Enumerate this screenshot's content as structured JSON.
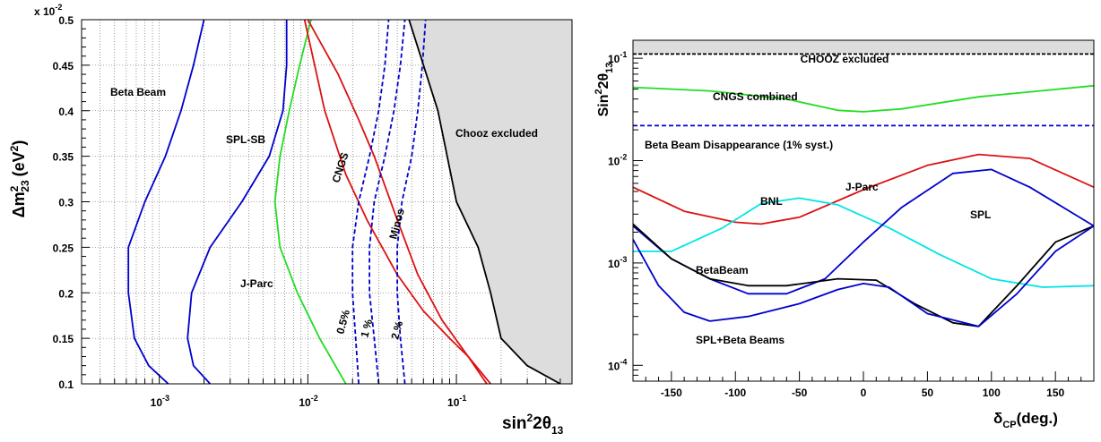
{
  "left_chart": {
    "y_multiplier_label": "x 10",
    "y_multiplier_exp": "-2",
    "ylabel_main": "Δm",
    "ylabel_sup": "2",
    "ylabel_sub": "23",
    "ylabel_unit": "(eV",
    "ylabel_unit_sup": "2",
    "ylabel_close": ")",
    "xlabel_main": "sin",
    "xlabel_sup": "2",
    "xlabel_mid": "2θ",
    "xlabel_sub": "13",
    "y_ticks": [
      "0.1",
      "0.15",
      "0.2",
      "0.25",
      "0.3",
      "0.35",
      "0.4",
      "0.45",
      "0.5"
    ],
    "x_ticks": [
      {
        "base": "10",
        "exp": "-3"
      },
      {
        "base": "10",
        "exp": "-2"
      },
      {
        "base": "10",
        "exp": "-1"
      }
    ],
    "labels": {
      "beta_beam": "Beta Beam",
      "spl_sb": "SPL-SB",
      "j_parc": "J-Parc",
      "cngs": "CNGS",
      "minos": "Minos",
      "chooz": "Chooz excluded",
      "p05": "0.5%",
      "p1": "1 %",
      "p2": "2 %"
    }
  },
  "right_chart": {
    "ylabel_main": "Sin",
    "ylabel_sup": "2",
    "ylabel_mid": "2θ",
    "ylabel_sub": "13",
    "xlabel_main": "δ",
    "xlabel_sub": "CP",
    "xlabel_unit": "(deg.)",
    "x_ticks": [
      "-150",
      "-100",
      "-50",
      "0",
      "50",
      "100",
      "150"
    ],
    "y_ticks": [
      {
        "base": "10",
        "exp": "-1"
      },
      {
        "base": "10",
        "exp": "-2"
      },
      {
        "base": "10",
        "exp": "-3"
      },
      {
        "base": "10",
        "exp": "-4"
      }
    ],
    "labels": {
      "chooz": "CHOOZ excluded",
      "cngs": "CNGS combined",
      "beta_dis": "Beta Beam Disappearance (1% syst.)",
      "jparc": "J-Parc",
      "bnl": "BNL",
      "spl": "SPL",
      "betabeam": "BetaBeam",
      "spl_beta": "SPL+Beta Beams"
    }
  },
  "chart_data": [
    {
      "type": "line",
      "xlabel": "sin²2θ13",
      "ylabel": "Δm²23 (eV²)",
      "x_scale": "log",
      "xlim": [
        0.0003,
        0.6
      ],
      "ylim": [
        0.1,
        0.5
      ],
      "y_multiplier": "x 10^-2",
      "colors": {
        "blue": "#0000cc",
        "green": "#22dd22",
        "red": "#dd1111",
        "black": "#000000",
        "shade": "#dddddd"
      },
      "series": [
        {
          "name": "Beta Beam",
          "style": "blue",
          "points": [
            [
              0.00115,
              0.1
            ],
            [
              0.00085,
              0.12
            ],
            [
              0.00068,
              0.15
            ],
            [
              0.00062,
              0.2
            ],
            [
              0.00062,
              0.25
            ],
            [
              0.0008,
              0.3
            ],
            [
              0.0011,
              0.35
            ],
            [
              0.0014,
              0.4
            ],
            [
              0.0017,
              0.45
            ],
            [
              0.002,
              0.5
            ]
          ]
        },
        {
          "name": "SPL-SB",
          "style": "blue",
          "points": [
            [
              0.0022,
              0.1
            ],
            [
              0.0017,
              0.12
            ],
            [
              0.00155,
              0.15
            ],
            [
              0.00165,
              0.2
            ],
            [
              0.0022,
              0.25
            ],
            [
              0.0036,
              0.3
            ],
            [
              0.0055,
              0.35
            ],
            [
              0.0068,
              0.4
            ],
            [
              0.0072,
              0.45
            ],
            [
              0.0072,
              0.5
            ]
          ]
        },
        {
          "name": "J-Parc",
          "style": "green",
          "points": [
            [
              0.018,
              0.1
            ],
            [
              0.012,
              0.15
            ],
            [
              0.0085,
              0.2
            ],
            [
              0.0065,
              0.25
            ],
            [
              0.006,
              0.3
            ],
            [
              0.0065,
              0.35
            ],
            [
              0.0075,
              0.4
            ],
            [
              0.0088,
              0.45
            ],
            [
              0.0105,
              0.5
            ]
          ]
        },
        {
          "name": "CNGS",
          "style": "red",
          "points": [
            [
              0.0095,
              0.5
            ],
            [
              0.013,
              0.4
            ],
            [
              0.018,
              0.33
            ],
            [
              0.025,
              0.28
            ],
            [
              0.04,
              0.22
            ],
            [
              0.06,
              0.18
            ],
            [
              0.09,
              0.15
            ],
            [
              0.12,
              0.13
            ],
            [
              0.16,
              0.1
            ]
          ]
        },
        {
          "name": "Minos",
          "style": "red",
          "points": [
            [
              0.01,
              0.5
            ],
            [
              0.016,
              0.44
            ],
            [
              0.022,
              0.39
            ],
            [
              0.028,
              0.35
            ],
            [
              0.04,
              0.28
            ],
            [
              0.055,
              0.22
            ],
            [
              0.08,
              0.17
            ],
            [
              0.12,
              0.13
            ],
            [
              0.17,
              0.1
            ]
          ]
        },
        {
          "name": "0.5%",
          "style": "blue-dash",
          "points": [
            [
              0.022,
              0.1
            ],
            [
              0.021,
              0.15
            ],
            [
              0.02,
              0.2
            ],
            [
              0.02,
              0.25
            ],
            [
              0.022,
              0.3
            ],
            [
              0.026,
              0.35
            ],
            [
              0.03,
              0.4
            ],
            [
              0.033,
              0.45
            ],
            [
              0.035,
              0.5
            ]
          ]
        },
        {
          "name": "1 %",
          "style": "blue-dash",
          "points": [
            [
              0.03,
              0.1
            ],
            [
              0.028,
              0.15
            ],
            [
              0.026,
              0.2
            ],
            [
              0.026,
              0.25
            ],
            [
              0.028,
              0.3
            ],
            [
              0.033,
              0.35
            ],
            [
              0.038,
              0.4
            ],
            [
              0.042,
              0.45
            ],
            [
              0.045,
              0.5
            ]
          ]
        },
        {
          "name": "2 %",
          "style": "blue-dash",
          "points": [
            [
              0.045,
              0.1
            ],
            [
              0.042,
              0.15
            ],
            [
              0.04,
              0.2
            ],
            [
              0.04,
              0.25
            ],
            [
              0.043,
              0.3
            ],
            [
              0.05,
              0.35
            ],
            [
              0.055,
              0.4
            ],
            [
              0.059,
              0.45
            ],
            [
              0.062,
              0.5
            ]
          ]
        },
        {
          "name": "Chooz excluded",
          "style": "black",
          "points": [
            [
              0.048,
              0.5
            ],
            [
              0.075,
              0.4
            ],
            [
              0.1,
              0.3
            ],
            [
              0.14,
              0.25
            ],
            [
              0.17,
              0.2
            ],
            [
              0.2,
              0.15
            ],
            [
              0.3,
              0.12
            ],
            [
              0.5,
              0.1
            ]
          ]
        }
      ]
    },
    {
      "type": "line",
      "xlabel": "δCP(deg.)",
      "ylabel": "Sin²2θ13",
      "y_scale": "log",
      "xlim": [
        -180,
        180
      ],
      "ylim": [
        7e-05,
        0.15
      ],
      "series": [
        {
          "name": "CHOOZ excluded",
          "style": "black-dash",
          "points": [
            [
              -180,
              0.11
            ],
            [
              180,
              0.11
            ]
          ]
        },
        {
          "name": "CNGS combined",
          "style": "green",
          "points": [
            [
              -180,
              0.052
            ],
            [
              -120,
              0.048
            ],
            [
              -60,
              0.04
            ],
            [
              -20,
              0.031
            ],
            [
              0,
              0.03
            ],
            [
              30,
              0.032
            ],
            [
              90,
              0.042
            ],
            [
              180,
              0.054
            ]
          ]
        },
        {
          "name": "Beta Beam Disappearance (1% syst.)",
          "style": "blue-dash",
          "points": [
            [
              -180,
              0.022
            ],
            [
              180,
              0.022
            ]
          ]
        },
        {
          "name": "J-Parc",
          "style": "red",
          "points": [
            [
              -180,
              0.0055
            ],
            [
              -140,
              0.0032
            ],
            [
              -100,
              0.0025
            ],
            [
              -80,
              0.0024
            ],
            [
              -50,
              0.0028
            ],
            [
              0,
              0.0052
            ],
            [
              50,
              0.009
            ],
            [
              90,
              0.0115
            ],
            [
              130,
              0.0105
            ],
            [
              180,
              0.0055
            ]
          ]
        },
        {
          "name": "BNL",
          "style": "cyan",
          "points": [
            [
              -180,
              0.0013
            ],
            [
              -150,
              0.0013
            ],
            [
              -110,
              0.0022
            ],
            [
              -80,
              0.0038
            ],
            [
              -50,
              0.0043
            ],
            [
              -20,
              0.0037
            ],
            [
              20,
              0.0022
            ],
            [
              60,
              0.0012
            ],
            [
              100,
              0.0007
            ],
            [
              140,
              0.00058
            ],
            [
              180,
              0.0006
            ]
          ]
        },
        {
          "name": "SPL",
          "style": "blue",
          "points": [
            [
              -180,
              0.0023
            ],
            [
              -150,
              0.0011
            ],
            [
              -120,
              0.0007
            ],
            [
              -90,
              0.0005
            ],
            [
              -60,
              0.0005
            ],
            [
              -30,
              0.0007
            ],
            [
              0,
              0.0016
            ],
            [
              30,
              0.0035
            ],
            [
              70,
              0.0075
            ],
            [
              100,
              0.0082
            ],
            [
              130,
              0.0055
            ],
            [
              180,
              0.0023
            ]
          ]
        },
        {
          "name": "BetaBeam",
          "style": "black",
          "points": [
            [
              -180,
              0.0024
            ],
            [
              -150,
              0.0011
            ],
            [
              -120,
              0.0007
            ],
            [
              -90,
              0.0006
            ],
            [
              -60,
              0.0006
            ],
            [
              -20,
              0.0007
            ],
            [
              10,
              0.00068
            ],
            [
              40,
              0.0004
            ],
            [
              70,
              0.00026
            ],
            [
              90,
              0.00024
            ],
            [
              120,
              0.0006
            ],
            [
              150,
              0.0016
            ],
            [
              180,
              0.0023
            ]
          ]
        },
        {
          "name": "SPL+Beta Beams",
          "style": "blue",
          "points": [
            [
              -180,
              0.0017
            ],
            [
              -160,
              0.0006
            ],
            [
              -140,
              0.00033
            ],
            [
              -120,
              0.00027
            ],
            [
              -90,
              0.0003
            ],
            [
              -50,
              0.0004
            ],
            [
              -20,
              0.00055
            ],
            [
              0,
              0.00063
            ],
            [
              20,
              0.00058
            ],
            [
              50,
              0.00032
            ],
            [
              90,
              0.00024
            ],
            [
              120,
              0.0005
            ],
            [
              150,
              0.0013
            ],
            [
              180,
              0.0023
            ]
          ]
        }
      ]
    }
  ]
}
